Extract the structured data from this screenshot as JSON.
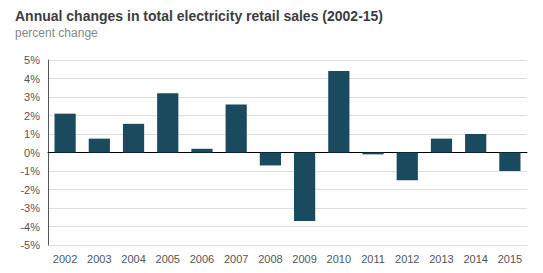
{
  "chart_data": {
    "type": "bar",
    "title": "Annual changes in total electricity retail sales (2002-15)",
    "subtitle": "percent change",
    "categories": [
      "2002",
      "2003",
      "2004",
      "2005",
      "2006",
      "2007",
      "2008",
      "2009",
      "2010",
      "2011",
      "2012",
      "2013",
      "2014",
      "2015"
    ],
    "values": [
      2.1,
      0.75,
      1.55,
      3.2,
      0.2,
      2.6,
      -0.7,
      -3.7,
      4.4,
      -0.1,
      -1.5,
      0.75,
      1.0,
      -1.0
    ],
    "color": "#1a4a5e",
    "ylim": [
      -5,
      5
    ],
    "yticks": [
      {
        "value": -5,
        "label": "-5%"
      },
      {
        "value": -4,
        "label": "-4%"
      },
      {
        "value": -3,
        "label": "-3%"
      },
      {
        "value": -2,
        "label": "-2%"
      },
      {
        "value": -1,
        "label": "-1%"
      },
      {
        "value": 0,
        "label": "0%"
      },
      {
        "value": 1,
        "label": "1%"
      },
      {
        "value": 2,
        "label": "2%"
      },
      {
        "value": 3,
        "label": "3%"
      },
      {
        "value": 4,
        "label": "4%"
      },
      {
        "value": 5,
        "label": "5%"
      }
    ],
    "grid": true
  }
}
